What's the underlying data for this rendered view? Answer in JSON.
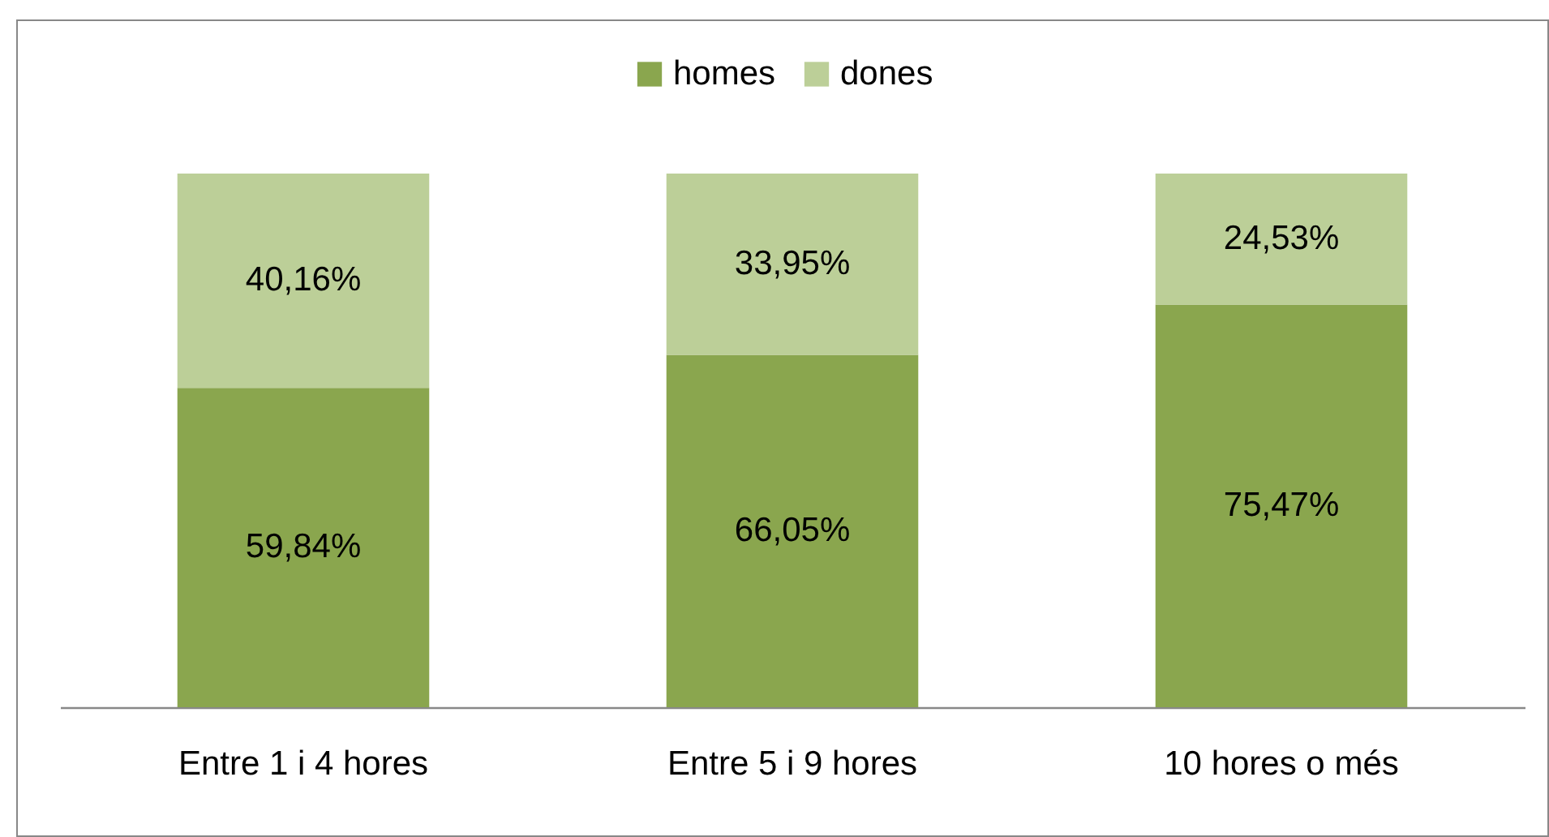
{
  "chart_data": {
    "type": "bar",
    "stacked": true,
    "categories": [
      "Entre 1 i 4 hores",
      "Entre 5 i 9 hores",
      "10 hores o més"
    ],
    "series": [
      {
        "name": "homes",
        "color": "#8aa64e",
        "values": [
          59.84,
          66.05,
          75.47
        ],
        "value_labels": [
          "59,84%",
          "66,05%",
          "75,47%"
        ]
      },
      {
        "name": "dones",
        "color": "#bccf98",
        "values": [
          40.16,
          33.95,
          24.53
        ],
        "value_labels": [
          "40,16%",
          "33,95%",
          "24,53%"
        ]
      }
    ],
    "legend": "top",
    "grid": false
  }
}
